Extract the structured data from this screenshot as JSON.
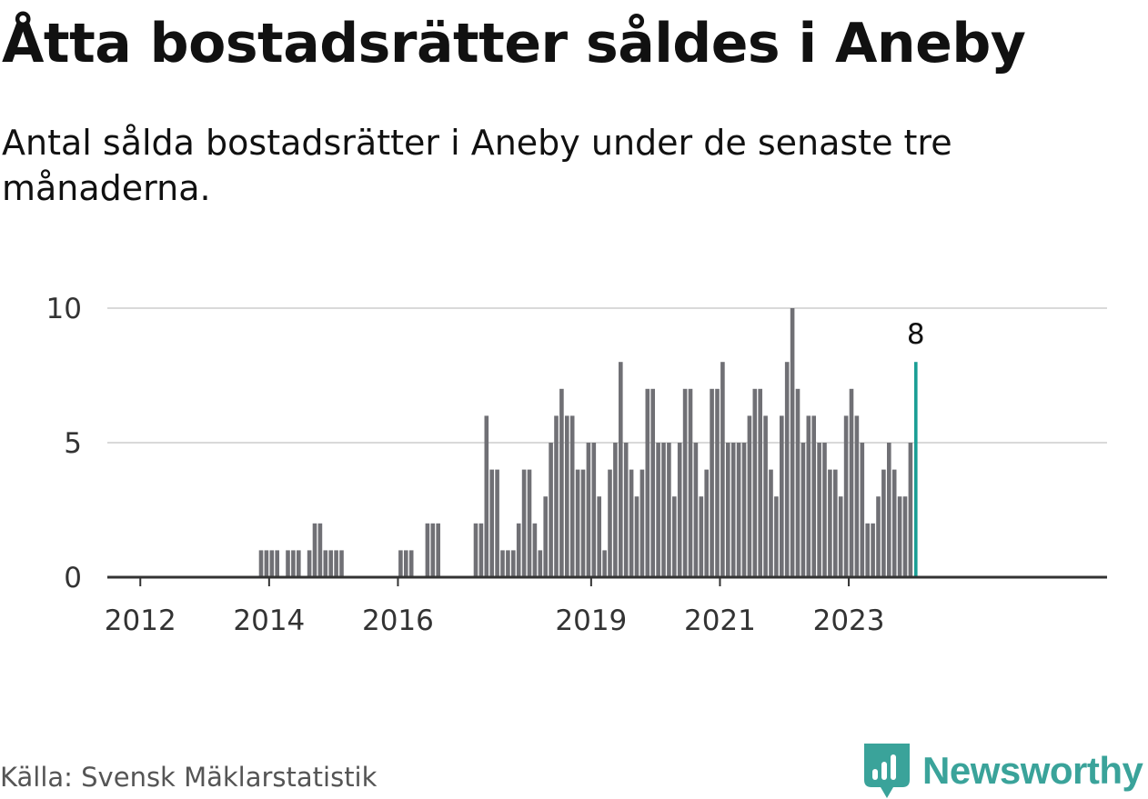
{
  "title": "Åtta bostadsrätter såldes i Aneby",
  "subtitle": "Antal sålda bostadsrätter i Aneby under de senaste tre månaderna.",
  "source": "Källa: Svensk Mäklarstatistik",
  "brand": {
    "name": "Newsworthy",
    "icon": "newsworthy-logo-icon",
    "color": "#3aa39a"
  },
  "colors": {
    "bar": "#707075",
    "highlight": "#1a9e95",
    "grid": "#d9d9d9",
    "axis": "#333333"
  },
  "chart_data": {
    "type": "bar",
    "title": "Åtta bostadsrätter såldes i Aneby",
    "subtitle": "Antal sålda bostadsrätter i Aneby under de senaste tre månaderna.",
    "xlabel": "",
    "ylabel": "",
    "x_start": "2011-07",
    "x_step": "1 month",
    "x_ticks": [
      "2012",
      "2014",
      "2016",
      "2019",
      "2021",
      "2023"
    ],
    "y_ticks": [
      0,
      5,
      10
    ],
    "ylim": [
      0,
      10
    ],
    "grid": true,
    "values": [
      0,
      0,
      0,
      0,
      0,
      0,
      0,
      0,
      0,
      0,
      0,
      0,
      0,
      0,
      0,
      0,
      0,
      0,
      0,
      0,
      0,
      0,
      0,
      0,
      0,
      0,
      0,
      0,
      1,
      1,
      1,
      1,
      0,
      1,
      1,
      1,
      0,
      1,
      2,
      2,
      1,
      1,
      1,
      1,
      0,
      0,
      0,
      0,
      0,
      0,
      0,
      0,
      0,
      0,
      1,
      1,
      1,
      0,
      0,
      2,
      2,
      2,
      0,
      0,
      0,
      0,
      0,
      0,
      2,
      2,
      6,
      4,
      4,
      1,
      1,
      1,
      2,
      4,
      4,
      2,
      1,
      3,
      5,
      6,
      7,
      6,
      6,
      4,
      4,
      5,
      5,
      3,
      1,
      4,
      5,
      8,
      5,
      4,
      3,
      4,
      7,
      7,
      5,
      5,
      5,
      3,
      5,
      7,
      7,
      5,
      3,
      4,
      7,
      7,
      8,
      5,
      5,
      5,
      5,
      6,
      7,
      7,
      6,
      4,
      3,
      6,
      8,
      10,
      7,
      5,
      6,
      6,
      5,
      5,
      4,
      4,
      3,
      6,
      7,
      6,
      5,
      2,
      2,
      3,
      4,
      5,
      4,
      3,
      3,
      5,
      8
    ],
    "highlight": {
      "label": "8",
      "value": 8,
      "index": "last"
    }
  }
}
